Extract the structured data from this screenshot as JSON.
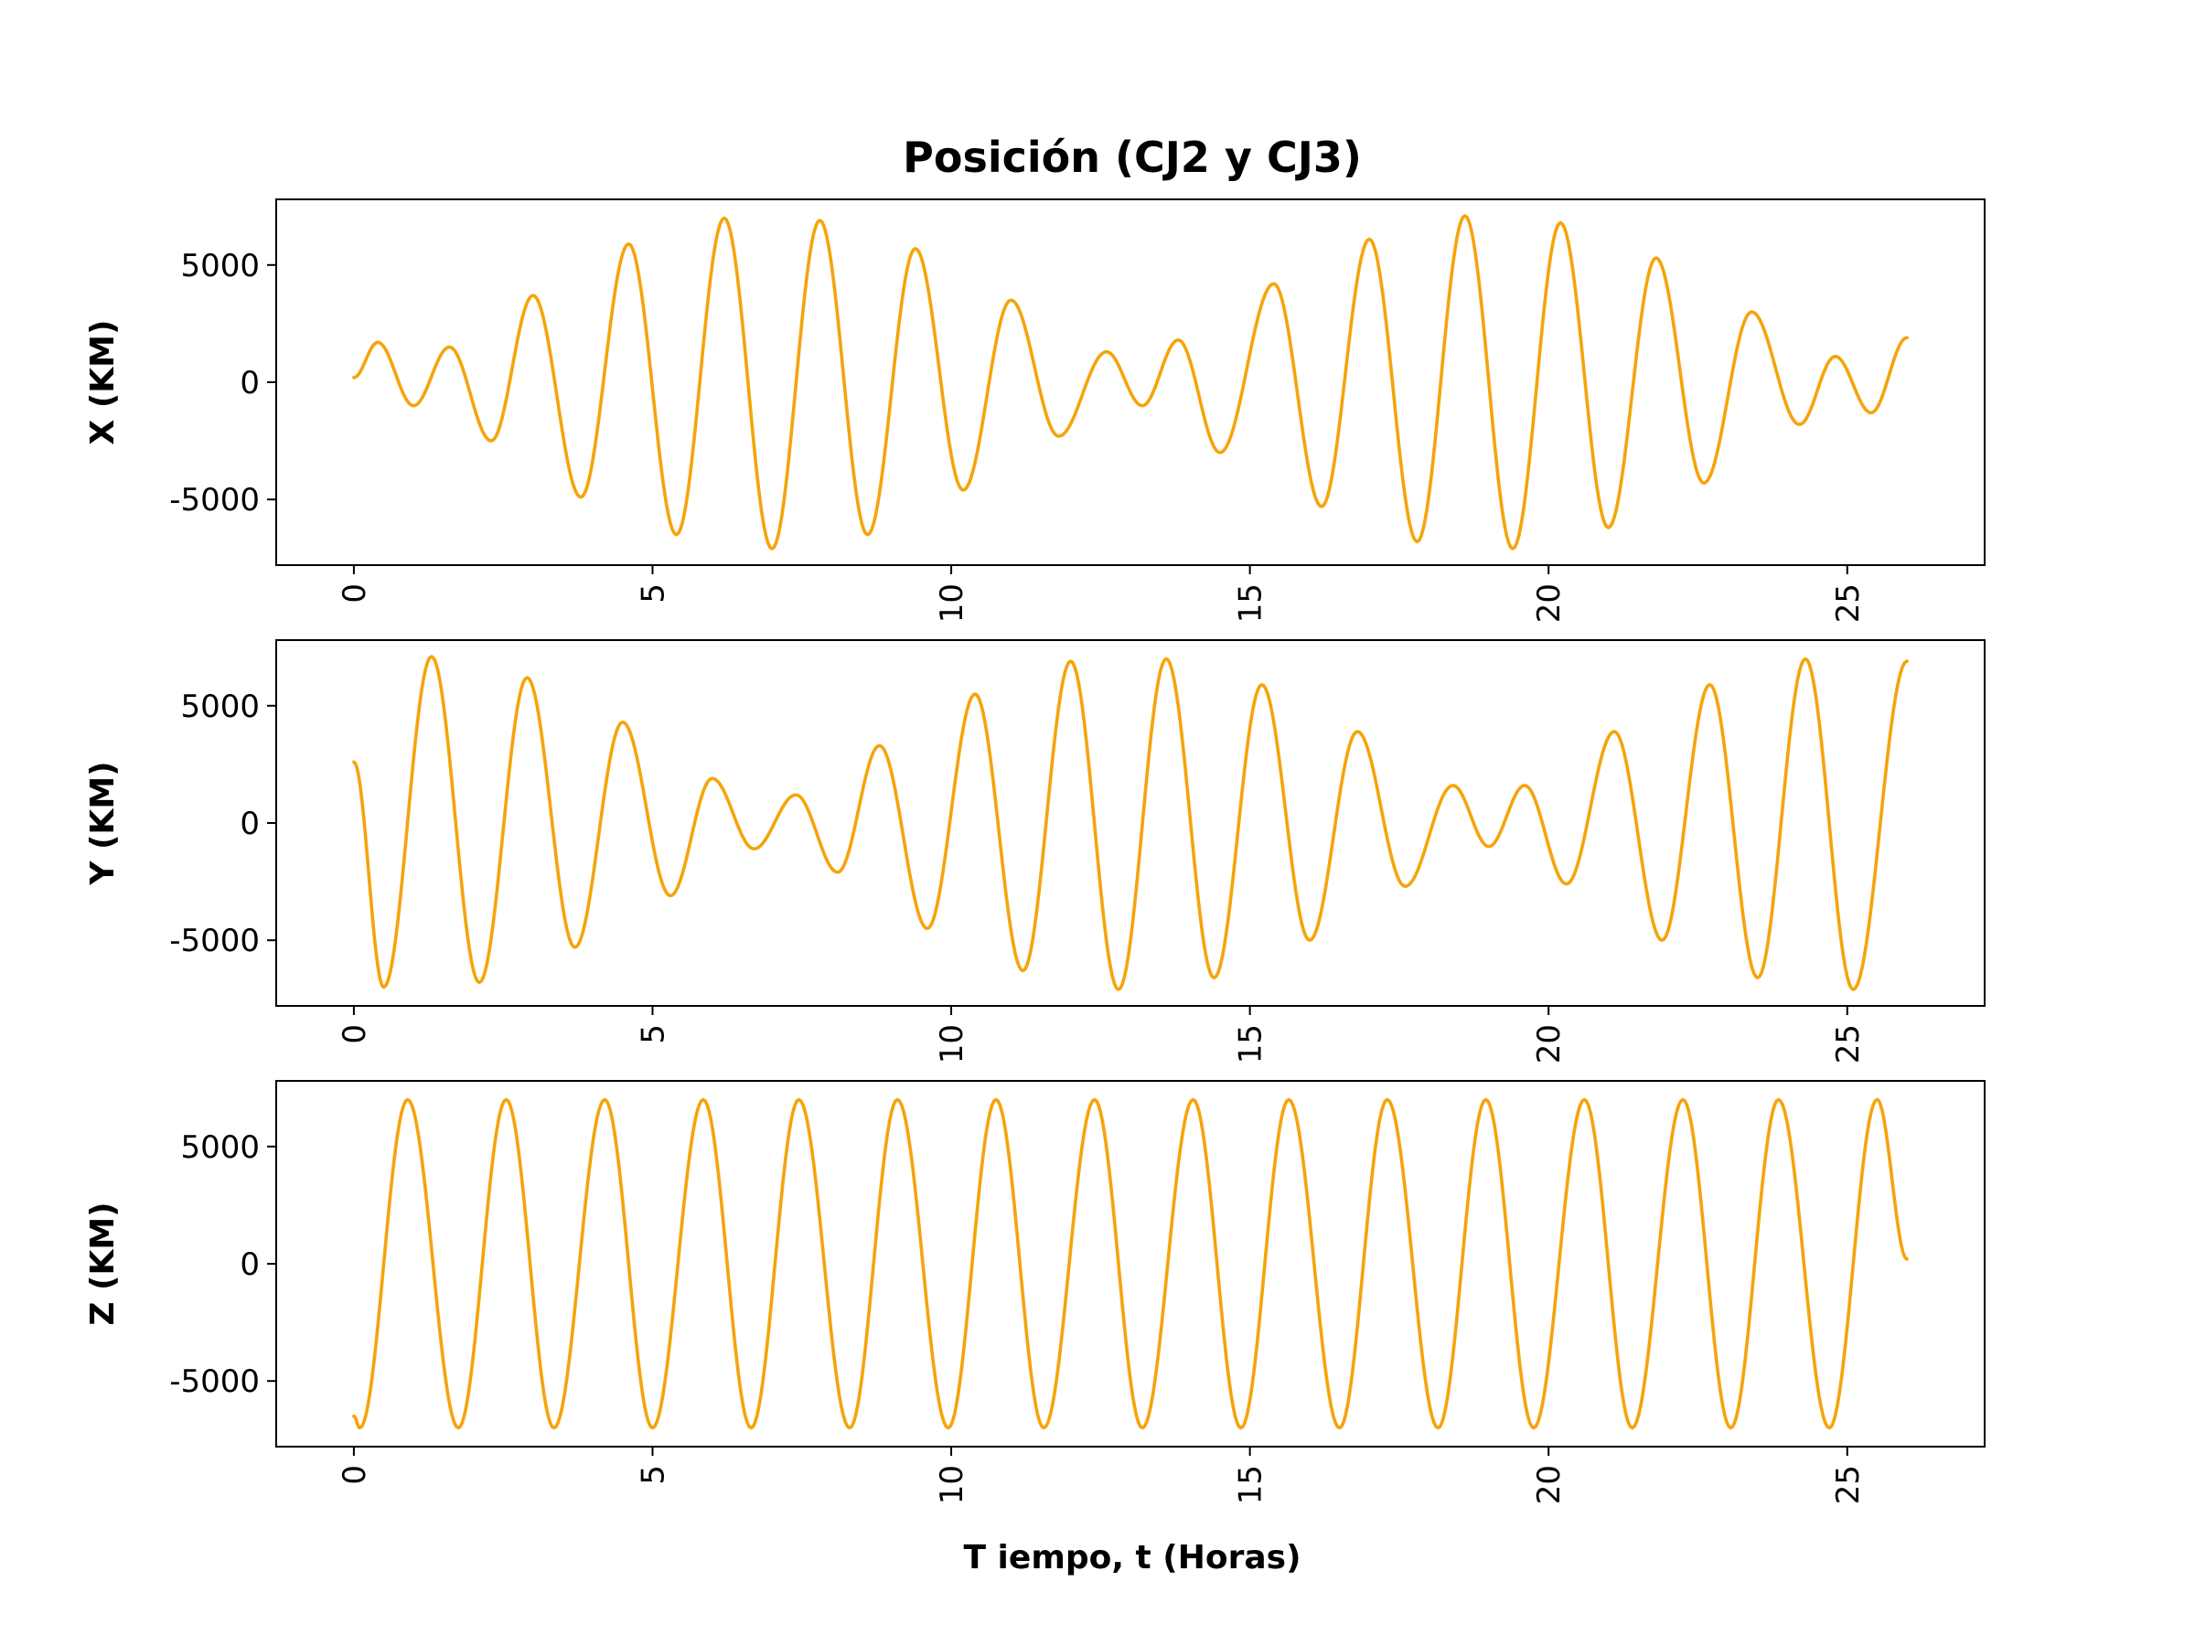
{
  "chart_data": {
    "type": "line",
    "title": "Posición (CJ2 y CJ3)",
    "xlabel": "T iempo, t (Horas)",
    "line_color": "#f5a40c",
    "xlim": [
      -1.3,
      27.3
    ],
    "xticks": [
      0,
      5,
      10,
      15,
      20,
      25
    ],
    "xtick_labels": [
      "0",
      "5",
      "10",
      "15",
      "20",
      "25"
    ],
    "yticks": [
      -5000,
      0,
      5000
    ],
    "ytick_labels": [
      "-5000",
      "0",
      "5000"
    ],
    "ylim": [
      -7800,
      7800
    ],
    "grid": false,
    "panels": [
      {
        "ylabel": "X (KM)",
        "series": {
          "x": [
            0.0,
            0.4,
            1.0,
            1.6,
            2.3,
            3.0,
            3.8,
            4.6,
            5.4,
            6.2,
            7.0,
            7.8,
            8.6,
            9.4,
            10.2,
            11.0,
            11.8,
            12.6,
            13.2,
            13.8,
            14.5,
            15.4,
            16.2,
            17.0,
            17.8,
            18.6,
            19.4,
            20.2,
            21.0,
            21.8,
            22.6,
            23.4,
            24.2,
            24.8,
            25.4,
            26.0
          ],
          "y": [
            200,
            1700,
            -1000,
            1500,
            -2500,
            3700,
            -4900,
            5900,
            -6500,
            7000,
            -7100,
            6900,
            -6500,
            5700,
            -4600,
            3500,
            -2300,
            1300,
            -1000,
            1800,
            -3000,
            4200,
            -5300,
            6100,
            -6800,
            7100,
            -7100,
            6800,
            -6200,
            5300,
            -4300,
            3000,
            -1800,
            1100,
            -1300,
            1900
          ]
        }
      },
      {
        "ylabel": "Y (KM)",
        "series": {
          "x": [
            0.0,
            0.5,
            1.3,
            2.1,
            2.9,
            3.7,
            4.5,
            5.3,
            6.0,
            6.7,
            7.4,
            8.1,
            8.8,
            9.6,
            10.4,
            11.2,
            12.0,
            12.8,
            13.6,
            14.4,
            15.2,
            16.0,
            16.8,
            17.6,
            18.4,
            19.0,
            19.6,
            20.3,
            21.1,
            21.9,
            22.7,
            23.5,
            24.3,
            25.1,
            26.0
          ],
          "y": [
            2600,
            -7000,
            7100,
            -6800,
            6200,
            -5300,
            4300,
            -3100,
            1900,
            -1100,
            1200,
            -2100,
            3300,
            -4500,
            5500,
            -6300,
            6900,
            -7100,
            7000,
            -6600,
            5900,
            -5000,
            3900,
            -2700,
            1600,
            -1000,
            1600,
            -2600,
            3900,
            -5000,
            5900,
            -6600,
            7000,
            -7100,
            6900
          ]
        }
      },
      {
        "ylabel": "Z (KM)",
        "series": {
          "x": [
            0.0,
            0.1,
            0.9,
            1.75,
            2.55,
            3.35,
            4.2,
            5.0,
            5.85,
            6.65,
            7.45,
            8.3,
            9.1,
            9.95,
            10.75,
            11.55,
            12.4,
            13.2,
            14.05,
            14.85,
            15.65,
            16.5,
            17.3,
            18.15,
            18.95,
            19.75,
            20.6,
            21.4,
            22.25,
            23.05,
            23.85,
            24.7,
            25.5,
            26.0
          ],
          "y": [
            -6500,
            -7000,
            7000,
            -7000,
            7000,
            -7000,
            7000,
            -7000,
            7000,
            -7000,
            7000,
            -7000,
            7000,
            -7000,
            7000,
            -7000,
            7000,
            -7000,
            7000,
            -7000,
            7000,
            -7000,
            7000,
            -7000,
            7000,
            -7000,
            7000,
            -7000,
            7000,
            -7000,
            7000,
            -7000,
            7000,
            200
          ]
        }
      }
    ]
  }
}
